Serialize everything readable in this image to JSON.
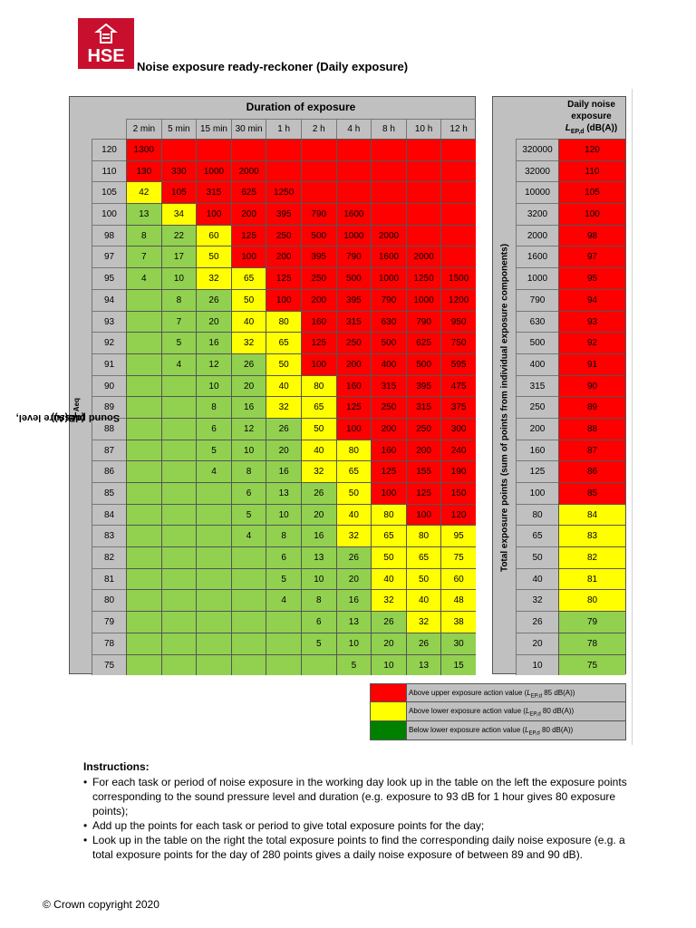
{
  "logo": {
    "text": "HSE",
    "color": "#c8102e"
  },
  "title": "Noise exposure ready-reckoner (Daily exposure)",
  "table": {
    "duration_header": "Duration of exposure",
    "durations": [
      "2 min",
      "5 min",
      "15 min",
      "30 min",
      "1 h",
      "2 h",
      "4 h",
      "8 h",
      "10 h",
      "12 h"
    ],
    "y_label_prefix": "Sound pressure level, ",
    "y_label_var": "L",
    "y_label_sub": "Aeq",
    "y_label_suffix": " (dB(A))",
    "rows": [
      {
        "level": "120",
        "cells": [
          "1300",
          "",
          "",
          "",
          "",
          "",
          "",
          "",
          "",
          ""
        ],
        "zones": [
          "r",
          "r",
          "r",
          "r",
          "r",
          "r",
          "r",
          "r",
          "r",
          "r"
        ]
      },
      {
        "level": "110",
        "cells": [
          "130",
          "330",
          "1000",
          "2000",
          "",
          "",
          "",
          "",
          "",
          ""
        ],
        "zones": [
          "r",
          "r",
          "r",
          "r",
          "r",
          "r",
          "r",
          "r",
          "r",
          "r"
        ]
      },
      {
        "level": "105",
        "cells": [
          "42",
          "105",
          "315",
          "625",
          "1250",
          "",
          "",
          "",
          "",
          ""
        ],
        "zones": [
          "y",
          "r",
          "r",
          "r",
          "r",
          "r",
          "r",
          "r",
          "r",
          "r"
        ]
      },
      {
        "level": "100",
        "cells": [
          "13",
          "34",
          "100",
          "200",
          "395",
          "790",
          "1600",
          "",
          "",
          ""
        ],
        "zones": [
          "g",
          "y",
          "r",
          "r",
          "r",
          "r",
          "r",
          "r",
          "r",
          "r"
        ]
      },
      {
        "level": "98",
        "cells": [
          "8",
          "22",
          "60",
          "125",
          "250",
          "500",
          "1000",
          "2000",
          "",
          ""
        ],
        "zones": [
          "g",
          "g",
          "y",
          "r",
          "r",
          "r",
          "r",
          "r",
          "r",
          "r"
        ]
      },
      {
        "level": "97",
        "cells": [
          "7",
          "17",
          "50",
          "100",
          "200",
          "395",
          "790",
          "1600",
          "2000",
          ""
        ],
        "zones": [
          "g",
          "g",
          "y",
          "r",
          "r",
          "r",
          "r",
          "r",
          "r",
          "r"
        ]
      },
      {
        "level": "95",
        "cells": [
          "4",
          "10",
          "32",
          "65",
          "125",
          "250",
          "500",
          "1000",
          "1250",
          "1500"
        ],
        "zones": [
          "g",
          "g",
          "y",
          "y",
          "r",
          "r",
          "r",
          "r",
          "r",
          "r"
        ]
      },
      {
        "level": "94",
        "cells": [
          "",
          "8",
          "26",
          "50",
          "100",
          "200",
          "395",
          "790",
          "1000",
          "1200"
        ],
        "zones": [
          "g",
          "g",
          "g",
          "y",
          "r",
          "r",
          "r",
          "r",
          "r",
          "r"
        ]
      },
      {
        "level": "93",
        "cells": [
          "",
          "7",
          "20",
          "40",
          "80",
          "160",
          "315",
          "630",
          "790",
          "950"
        ],
        "zones": [
          "g",
          "g",
          "g",
          "y",
          "y",
          "r",
          "r",
          "r",
          "r",
          "r"
        ]
      },
      {
        "level": "92",
        "cells": [
          "",
          "5",
          "16",
          "32",
          "65",
          "125",
          "250",
          "500",
          "625",
          "750"
        ],
        "zones": [
          "g",
          "g",
          "g",
          "y",
          "y",
          "r",
          "r",
          "r",
          "r",
          "r"
        ]
      },
      {
        "level": "91",
        "cells": [
          "",
          "4",
          "12",
          "26",
          "50",
          "100",
          "200",
          "400",
          "500",
          "595"
        ],
        "zones": [
          "g",
          "g",
          "g",
          "g",
          "y",
          "r",
          "r",
          "r",
          "r",
          "r"
        ]
      },
      {
        "level": "90",
        "cells": [
          "",
          "",
          "10",
          "20",
          "40",
          "80",
          "160",
          "315",
          "395",
          "475"
        ],
        "zones": [
          "g",
          "g",
          "g",
          "g",
          "y",
          "y",
          "r",
          "r",
          "r",
          "r"
        ]
      },
      {
        "level": "89",
        "cells": [
          "",
          "",
          "8",
          "16",
          "32",
          "65",
          "125",
          "250",
          "315",
          "375"
        ],
        "zones": [
          "g",
          "g",
          "g",
          "g",
          "y",
          "y",
          "r",
          "r",
          "r",
          "r"
        ]
      },
      {
        "level": "88",
        "cells": [
          "",
          "",
          "6",
          "12",
          "26",
          "50",
          "100",
          "200",
          "250",
          "300"
        ],
        "zones": [
          "g",
          "g",
          "g",
          "g",
          "g",
          "y",
          "r",
          "r",
          "r",
          "r"
        ]
      },
      {
        "level": "87",
        "cells": [
          "",
          "",
          "5",
          "10",
          "20",
          "40",
          "80",
          "160",
          "200",
          "240"
        ],
        "zones": [
          "g",
          "g",
          "g",
          "g",
          "g",
          "y",
          "y",
          "r",
          "r",
          "r"
        ]
      },
      {
        "level": "86",
        "cells": [
          "",
          "",
          "4",
          "8",
          "16",
          "32",
          "65",
          "125",
          "155",
          "190"
        ],
        "zones": [
          "g",
          "g",
          "g",
          "g",
          "g",
          "y",
          "y",
          "r",
          "r",
          "r"
        ]
      },
      {
        "level": "85",
        "cells": [
          "",
          "",
          "",
          "6",
          "13",
          "26",
          "50",
          "100",
          "125",
          "150"
        ],
        "zones": [
          "g",
          "g",
          "g",
          "g",
          "g",
          "g",
          "y",
          "r",
          "r",
          "r"
        ]
      },
      {
        "level": "84",
        "cells": [
          "",
          "",
          "",
          "5",
          "10",
          "20",
          "40",
          "80",
          "100",
          "120"
        ],
        "zones": [
          "g",
          "g",
          "g",
          "g",
          "g",
          "g",
          "y",
          "y",
          "r",
          "r"
        ]
      },
      {
        "level": "83",
        "cells": [
          "",
          "",
          "",
          "4",
          "8",
          "16",
          "32",
          "65",
          "80",
          "95"
        ],
        "zones": [
          "g",
          "g",
          "g",
          "g",
          "g",
          "g",
          "y",
          "y",
          "y",
          "y"
        ]
      },
      {
        "level": "82",
        "cells": [
          "",
          "",
          "",
          "",
          "6",
          "13",
          "26",
          "50",
          "65",
          "75"
        ],
        "zones": [
          "g",
          "g",
          "g",
          "g",
          "g",
          "g",
          "g",
          "y",
          "y",
          "y"
        ]
      },
      {
        "level": "81",
        "cells": [
          "",
          "",
          "",
          "",
          "5",
          "10",
          "20",
          "40",
          "50",
          "60"
        ],
        "zones": [
          "g",
          "g",
          "g",
          "g",
          "g",
          "g",
          "g",
          "y",
          "y",
          "y"
        ]
      },
      {
        "level": "80",
        "cells": [
          "",
          "",
          "",
          "",
          "4",
          "8",
          "16",
          "32",
          "40",
          "48"
        ],
        "zones": [
          "g",
          "g",
          "g",
          "g",
          "g",
          "g",
          "g",
          "y",
          "y",
          "y"
        ]
      },
      {
        "level": "79",
        "cells": [
          "",
          "",
          "",
          "",
          "",
          "6",
          "13",
          "26",
          "32",
          "38"
        ],
        "zones": [
          "g",
          "g",
          "g",
          "g",
          "g",
          "g",
          "g",
          "g",
          "y",
          "y"
        ]
      },
      {
        "level": "78",
        "cells": [
          "",
          "",
          "",
          "",
          "",
          "5",
          "10",
          "20",
          "26",
          "30"
        ],
        "zones": [
          "g",
          "g",
          "g",
          "g",
          "g",
          "g",
          "g",
          "g",
          "g",
          "g"
        ]
      },
      {
        "level": "75",
        "cells": [
          "",
          "",
          "",
          "",
          "",
          "",
          "5",
          "10",
          "13",
          "15"
        ],
        "zones": [
          "g",
          "g",
          "g",
          "g",
          "g",
          "g",
          "g",
          "g",
          "g",
          "g"
        ]
      }
    ]
  },
  "daily": {
    "header_line1": "Daily noise",
    "header_line2": "exposure",
    "header_var": "L",
    "header_sub": "EP,d",
    "header_unit": " (dB(A))",
    "y_label": "Total exposure points (sum of points from individual exposure components)",
    "rows": [
      {
        "points": "320000",
        "lep": "120",
        "zone": "r"
      },
      {
        "points": "32000",
        "lep": "110",
        "zone": "r"
      },
      {
        "points": "10000",
        "lep": "105",
        "zone": "r"
      },
      {
        "points": "3200",
        "lep": "100",
        "zone": "r"
      },
      {
        "points": "2000",
        "lep": "98",
        "zone": "r"
      },
      {
        "points": "1600",
        "lep": "97",
        "zone": "r"
      },
      {
        "points": "1000",
        "lep": "95",
        "zone": "r"
      },
      {
        "points": "790",
        "lep": "94",
        "zone": "r"
      },
      {
        "points": "630",
        "lep": "93",
        "zone": "r"
      },
      {
        "points": "500",
        "lep": "92",
        "zone": "r"
      },
      {
        "points": "400",
        "lep": "91",
        "zone": "r"
      },
      {
        "points": "315",
        "lep": "90",
        "zone": "r"
      },
      {
        "points": "250",
        "lep": "89",
        "zone": "r"
      },
      {
        "points": "200",
        "lep": "88",
        "zone": "r"
      },
      {
        "points": "160",
        "lep": "87",
        "zone": "r"
      },
      {
        "points": "125",
        "lep": "86",
        "zone": "r"
      },
      {
        "points": "100",
        "lep": "85",
        "zone": "r"
      },
      {
        "points": "80",
        "lep": "84",
        "zone": "y"
      },
      {
        "points": "65",
        "lep": "83",
        "zone": "y"
      },
      {
        "points": "50",
        "lep": "82",
        "zone": "y"
      },
      {
        "points": "40",
        "lep": "81",
        "zone": "y"
      },
      {
        "points": "32",
        "lep": "80",
        "zone": "y"
      },
      {
        "points": "26",
        "lep": "79",
        "zone": "g"
      },
      {
        "points": "20",
        "lep": "78",
        "zone": "g"
      },
      {
        "points": "10",
        "lep": "75",
        "zone": "g"
      }
    ]
  },
  "legend": [
    {
      "color": "#ff0000",
      "pre": "Above upper exposure action value (",
      "var": "L",
      "sub": "EP,d",
      "post": " 85 dB(A))"
    },
    {
      "color": "#ffff00",
      "pre": "Above lower exposure action value (",
      "var": "L",
      "sub": "EP,d",
      "post": " 80 dB(A))"
    },
    {
      "color": "#008000",
      "pre": "Below lower exposure action value (",
      "var": "L",
      "sub": "EP,d",
      "post": " 80 dB(A))"
    }
  ],
  "colors": {
    "red": "#ff0000",
    "yellow": "#ffff00",
    "green": "#92d050",
    "header_grey": "#c0c0c0"
  },
  "instructions": {
    "heading": "Instructions:",
    "items": [
      "For each task or period of noise exposure in the working day look up in the table on the left the exposure points corresponding to the sound pressure level and duration (e.g. exposure to 93 dB for 1 hour gives 80 exposure points);",
      "Add up the points for each task or period to give total exposure points for the day;",
      "Look up in the table on the right the total exposure points to find the corresponding daily noise exposure (e.g. a total exposure points for the day of 280 points gives a daily noise exposure of between 89 and 90 dB)."
    ]
  },
  "copyright": "© Crown copyright 2020"
}
